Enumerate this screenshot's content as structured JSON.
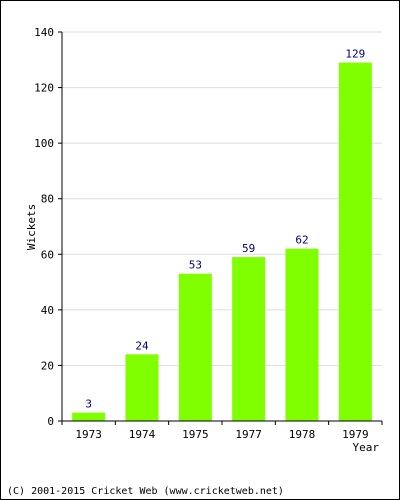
{
  "chart_data": {
    "type": "bar",
    "categories": [
      "1973",
      "1974",
      "1975",
      "1977",
      "1978",
      "1979"
    ],
    "values": [
      3,
      24,
      53,
      59,
      62,
      129
    ],
    "xlabel": "Year",
    "ylabel": "Wickets",
    "ylim": [
      0,
      140
    ],
    "yticks": [
      0,
      20,
      40,
      60,
      80,
      100,
      120,
      140
    ],
    "grid": true,
    "data_labels": true,
    "colors": {
      "bar": "#80ff00",
      "data_label": "#000080",
      "grid": "#dddddd",
      "axis": "#000000"
    }
  },
  "footer": {
    "copyright": "(C) 2001-2015 Cricket Web (www.cricketweb.net)"
  }
}
